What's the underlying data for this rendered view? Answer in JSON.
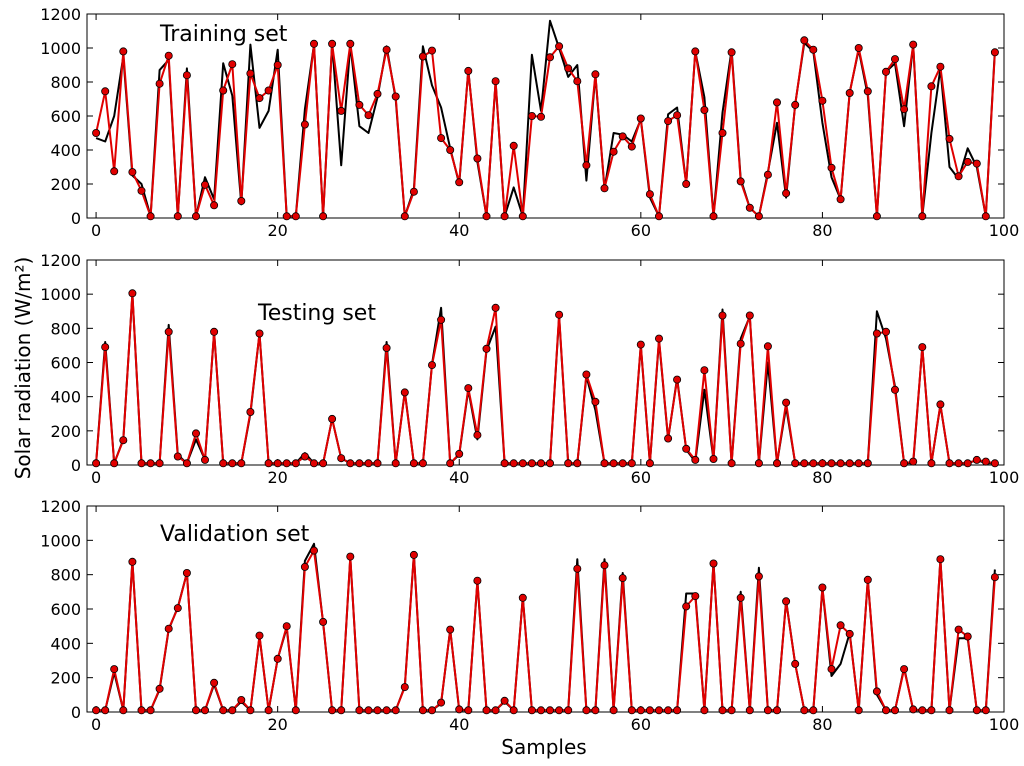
{
  "figure": {
    "xlabel": "Samples",
    "ylabel": "Solar radiation (W/m²)"
  },
  "chart_data": [
    {
      "type": "line",
      "title": "Training set",
      "xlim": [
        -1,
        100
      ],
      "ylim": [
        0,
        1200
      ],
      "xticks": [
        0,
        20,
        40,
        60,
        80,
        100
      ],
      "yticks": [
        0,
        200,
        400,
        600,
        800,
        1000,
        1200
      ],
      "series": [
        {
          "color": "#000000",
          "marker": "none",
          "values": [
            470,
            450,
            600,
            950,
            250,
            200,
            10,
            870,
            930,
            10,
            880,
            10,
            240,
            110,
            910,
            720,
            80,
            1020,
            530,
            630,
            990,
            10,
            10,
            640,
            1020,
            10,
            1030,
            310,
            1020,
            540,
            500,
            710,
            1010,
            700,
            10,
            170,
            1010,
            780,
            650,
            410,
            200,
            870,
            330,
            10,
            800,
            10,
            180,
            10,
            960,
            630,
            1160,
            1000,
            830,
            900,
            220,
            840,
            170,
            500,
            490,
            450,
            580,
            120,
            10,
            610,
            650,
            200,
            980,
            710,
            10,
            620,
            990,
            230,
            60,
            10,
            270,
            560,
            120,
            670,
            1030,
            980,
            560,
            240,
            110,
            740,
            990,
            720,
            10,
            860,
            910,
            540,
            1020,
            10,
            500,
            880,
            300,
            230,
            410,
            300,
            10,
            990
          ]
        },
        {
          "color": "#e00000",
          "marker": "circle",
          "values": [
            500,
            745,
            275,
            980,
            270,
            160,
            10,
            790,
            955,
            10,
            840,
            10,
            195,
            75,
            750,
            905,
            100,
            850,
            705,
            750,
            900,
            10,
            10,
            550,
            1025,
            10,
            1025,
            630,
            1025,
            665,
            605,
            730,
            990,
            715,
            10,
            155,
            950,
            985,
            470,
            400,
            210,
            865,
            350,
            10,
            805,
            10,
            425,
            10,
            600,
            595,
            945,
            1010,
            880,
            805,
            310,
            845,
            175,
            390,
            480,
            420,
            585,
            140,
            10,
            570,
            605,
            200,
            980,
            635,
            10,
            500,
            975,
            215,
            60,
            10,
            255,
            680,
            145,
            665,
            1045,
            990,
            690,
            295,
            110,
            735,
            1000,
            745,
            10,
            860,
            935,
            640,
            1020,
            10,
            775,
            890,
            465,
            245,
            330,
            320,
            10,
            975
          ]
        }
      ]
    },
    {
      "type": "line",
      "title": "Testing set",
      "xlim": [
        -1,
        100
      ],
      "ylim": [
        0,
        1200
      ],
      "xticks": [
        0,
        20,
        40,
        60,
        80,
        100
      ],
      "yticks": [
        0,
        200,
        400,
        600,
        800,
        1000,
        1200
      ],
      "series": [
        {
          "color": "#000000",
          "marker": "none",
          "values": [
            10,
            720,
            10,
            150,
            1000,
            10,
            10,
            10,
            820,
            60,
            10,
            150,
            30,
            780,
            10,
            10,
            10,
            300,
            770,
            10,
            10,
            10,
            10,
            70,
            10,
            10,
            270,
            40,
            10,
            10,
            10,
            10,
            720,
            10,
            430,
            10,
            10,
            590,
            920,
            10,
            60,
            440,
            150,
            670,
            810,
            10,
            10,
            10,
            10,
            10,
            10,
            870,
            10,
            10,
            520,
            320,
            10,
            10,
            10,
            10,
            700,
            10,
            730,
            150,
            510,
            90,
            20,
            440,
            30,
            910,
            10,
            740,
            870,
            10,
            600,
            10,
            340,
            10,
            10,
            10,
            10,
            10,
            10,
            10,
            10,
            10,
            900,
            740,
            460,
            10,
            10,
            690,
            10,
            350,
            10,
            10,
            10,
            30,
            10,
            10
          ]
        },
        {
          "color": "#e00000",
          "marker": "circle",
          "values": [
            10,
            690,
            10,
            145,
            1005,
            10,
            10,
            10,
            780,
            50,
            10,
            185,
            30,
            780,
            10,
            10,
            10,
            310,
            770,
            10,
            10,
            10,
            10,
            50,
            10,
            10,
            270,
            40,
            10,
            10,
            10,
            10,
            685,
            10,
            425,
            10,
            10,
            585,
            850,
            10,
            65,
            450,
            175,
            680,
            920,
            10,
            10,
            10,
            10,
            10,
            10,
            880,
            10,
            10,
            530,
            370,
            10,
            10,
            10,
            10,
            705,
            10,
            740,
            155,
            500,
            95,
            30,
            555,
            35,
            875,
            10,
            710,
            875,
            10,
            695,
            10,
            365,
            10,
            10,
            10,
            10,
            10,
            10,
            10,
            10,
            10,
            770,
            780,
            440,
            10,
            20,
            690,
            10,
            355,
            10,
            10,
            10,
            30,
            20,
            10
          ]
        }
      ]
    },
    {
      "type": "line",
      "title": "Validation set",
      "xlim": [
        -1,
        100
      ],
      "ylim": [
        0,
        1200
      ],
      "xticks": [
        0,
        20,
        40,
        60,
        80,
        100
      ],
      "yticks": [
        0,
        200,
        400,
        600,
        800,
        1000,
        1200
      ],
      "series": [
        {
          "color": "#000000",
          "marker": "none",
          "values": [
            10,
            10,
            230,
            10,
            880,
            10,
            10,
            130,
            480,
            610,
            810,
            10,
            10,
            160,
            10,
            10,
            60,
            10,
            440,
            10,
            310,
            490,
            10,
            880,
            980,
            520,
            10,
            10,
            900,
            10,
            10,
            10,
            10,
            10,
            150,
            920,
            10,
            10,
            50,
            480,
            10,
            10,
            760,
            10,
            10,
            60,
            10,
            670,
            10,
            10,
            10,
            10,
            10,
            890,
            10,
            10,
            890,
            10,
            810,
            10,
            10,
            10,
            10,
            10,
            10,
            690,
            690,
            10,
            870,
            10,
            10,
            700,
            10,
            840,
            10,
            10,
            650,
            280,
            10,
            10,
            720,
            210,
            280,
            460,
            10,
            770,
            100,
            10,
            10,
            260,
            10,
            10,
            10,
            890,
            10,
            430,
            430,
            10,
            10,
            830
          ]
        },
        {
          "color": "#e00000",
          "marker": "circle",
          "values": [
            10,
            10,
            250,
            10,
            875,
            10,
            10,
            135,
            485,
            605,
            810,
            10,
            10,
            170,
            10,
            10,
            70,
            10,
            445,
            10,
            310,
            500,
            10,
            845,
            940,
            525,
            10,
            10,
            905,
            10,
            10,
            10,
            10,
            10,
            145,
            915,
            10,
            10,
            55,
            480,
            15,
            10,
            765,
            10,
            10,
            65,
            10,
            665,
            10,
            10,
            10,
            10,
            10,
            835,
            10,
            10,
            855,
            10,
            780,
            10,
            10,
            10,
            10,
            10,
            10,
            615,
            675,
            10,
            865,
            10,
            10,
            665,
            10,
            790,
            10,
            10,
            645,
            280,
            10,
            10,
            725,
            250,
            505,
            455,
            10,
            770,
            120,
            10,
            10,
            250,
            15,
            10,
            10,
            890,
            10,
            480,
            440,
            10,
            10,
            785
          ]
        }
      ]
    }
  ]
}
